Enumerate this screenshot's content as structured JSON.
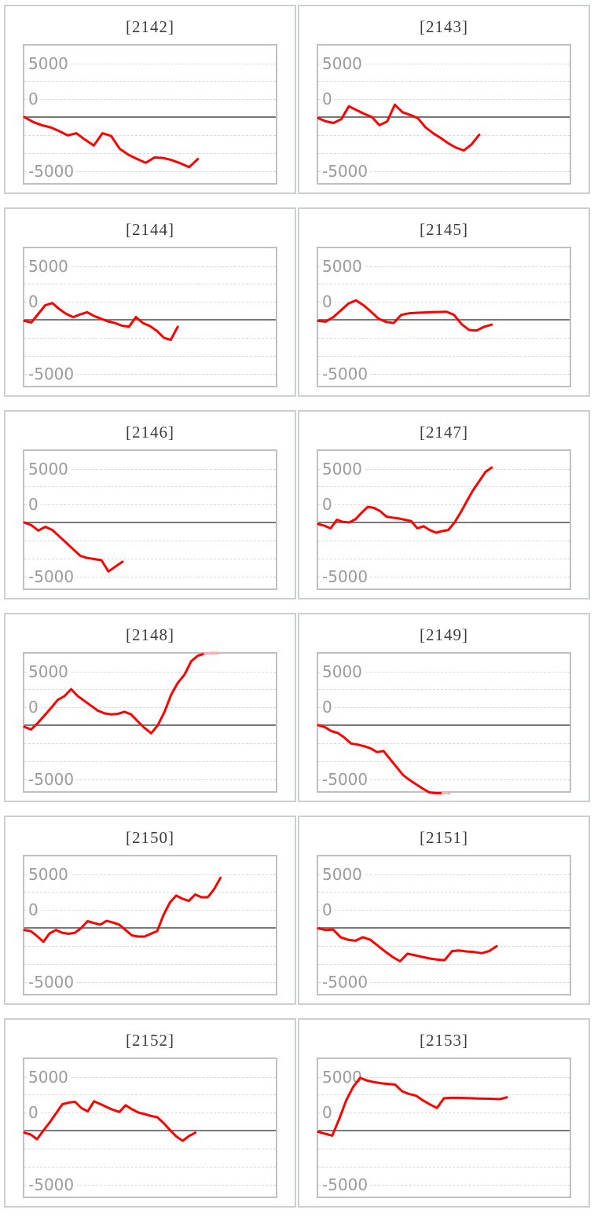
{
  "chart_config": {
    "ytick_labels": [
      "5000",
      "0",
      "-5000"
    ],
    "yticks": [
      5000,
      0,
      -5000
    ],
    "ylim": [
      -6131,
      6642
    ],
    "minor_grid_step": 1667,
    "grid": "dashed horizontal minor gridlines, solid zero axis",
    "legend": "none",
    "series_color": "#ff0000",
    "overflow_color": "#f2b6bc",
    "zero_line_color": "#787878",
    "grid_color": "#d9d9d9",
    "plot_border_color": "#c0c0c0",
    "panel_border_color": "#cdd0d2",
    "title_color": "#3d3d3d",
    "tick_label_color": "#9b9b9b"
  },
  "chart_data": [
    {
      "type": "line",
      "id": "2142",
      "title": "[2142]",
      "span": 0.69,
      "clip_from": null,
      "values": [
        0,
        -450,
        -750,
        -950,
        -1300,
        -1700,
        -1500,
        -2100,
        -2650,
        -1500,
        -1750,
        -2950,
        -3500,
        -3900,
        -4250,
        -3750,
        -3800,
        -4000,
        -4300,
        -4650,
        -3900
      ]
    },
    {
      "type": "line",
      "id": "2143",
      "title": "[2143]",
      "span": 0.64,
      "clip_from": null,
      "values": [
        -100,
        -400,
        -550,
        -200,
        1000,
        650,
        300,
        0,
        -750,
        -400,
        1150,
        450,
        200,
        -100,
        -950,
        -1500,
        -1950,
        -2450,
        -2850,
        -3100,
        -2550,
        -1650
      ]
    },
    {
      "type": "line",
      "id": "2144",
      "title": "[2144]",
      "span": 0.61,
      "clip_from": null,
      "values": [
        -100,
        -250,
        550,
        1350,
        1550,
        1000,
        550,
        250,
        500,
        700,
        350,
        100,
        -150,
        -300,
        -550,
        -650,
        250,
        -300,
        -580,
        -1030,
        -1670,
        -1870,
        -660
      ]
    },
    {
      "type": "line",
      "id": "2145",
      "title": "[2145]",
      "span": 0.69,
      "clip_from": null,
      "values": [
        -100,
        -175,
        250,
        870,
        1500,
        1800,
        1350,
        750,
        100,
        -200,
        -300,
        450,
        600,
        650,
        680,
        700,
        720,
        750,
        450,
        -400,
        -950,
        -1000,
        -650,
        -450
      ]
    },
    {
      "type": "line",
      "id": "2146",
      "title": "[2146]",
      "span": 0.39,
      "clip_from": null,
      "values": [
        0,
        -250,
        -750,
        -400,
        -700,
        -1300,
        -1900,
        -2500,
        -3100,
        -3300,
        -3400,
        -3500,
        -4550,
        -4100,
        -3650
      ]
    },
    {
      "type": "line",
      "id": "2147",
      "title": "[2147]",
      "span": 0.69,
      "clip_from": null,
      "values": [
        -150,
        -300,
        -550,
        250,
        50,
        0,
        300,
        900,
        1450,
        1350,
        1050,
        550,
        450,
        370,
        250,
        130,
        -550,
        -350,
        -700,
        -950,
        -800,
        -700,
        0,
        950,
        2000,
        3000,
        3850,
        4700,
        5100
      ]
    },
    {
      "type": "line",
      "id": "2148",
      "title": "[2148]",
      "span": 0.77,
      "clip_from": 27,
      "values": [
        -150,
        -400,
        200,
        900,
        1600,
        2350,
        2700,
        3350,
        2700,
        2250,
        1800,
        1350,
        1100,
        1000,
        1050,
        1250,
        1000,
        350,
        -250,
        -750,
        0,
        1250,
        2850,
        3950,
        4700,
        5950,
        6450,
        6650,
        6700,
        6700
      ]
    },
    {
      "type": "line",
      "id": "2149",
      "title": "[2149]",
      "span": 0.52,
      "clip_from": 19,
      "values": [
        0,
        -175,
        -550,
        -720,
        -1150,
        -1700,
        -1800,
        -1950,
        -2150,
        -2500,
        -2400,
        -3150,
        -3900,
        -4650,
        -5100,
        -5500,
        -5900,
        -6250,
        -6500,
        -6650,
        -6700
      ]
    },
    {
      "type": "line",
      "id": "2150",
      "title": "[2150]",
      "span": 0.78,
      "clip_from": null,
      "values": [
        -200,
        -300,
        -750,
        -1300,
        -500,
        -200,
        -450,
        -550,
        -450,
        0,
        620,
        450,
        300,
        650,
        500,
        300,
        -200,
        -700,
        -800,
        -800,
        -550,
        -300,
        1200,
        2350,
        3000,
        2700,
        2500,
        3100,
        2850,
        2850,
        3600,
        4650
      ]
    },
    {
      "type": "line",
      "id": "2151",
      "title": "[2151]",
      "span": 0.71,
      "clip_from": null,
      "values": [
        -50,
        -200,
        -150,
        -870,
        -1100,
        -1200,
        -870,
        -1100,
        -1650,
        -2200,
        -2700,
        -3100,
        -2400,
        -2550,
        -2700,
        -2850,
        -2950,
        -3000,
        -2150,
        -2100,
        -2200,
        -2250,
        -2350,
        -2150,
        -1700
      ]
    },
    {
      "type": "line",
      "id": "2152",
      "title": "[2152]",
      "span": 0.68,
      "clip_from": null,
      "values": [
        -200,
        -370,
        -800,
        0,
        750,
        1600,
        2450,
        2600,
        2670,
        2100,
        1780,
        2720,
        2470,
        2180,
        1930,
        1730,
        2350,
        1980,
        1680,
        1530,
        1360,
        1240,
        690,
        50,
        -550,
        -950,
        -500,
        -200
      ]
    },
    {
      "type": "line",
      "id": "2153",
      "title": "[2153]",
      "span": 0.75,
      "clip_from": null,
      "values": [
        -125,
        -300,
        -470,
        1070,
        2800,
        4050,
        4900,
        4650,
        4500,
        4400,
        4330,
        4280,
        3650,
        3400,
        3250,
        2800,
        2430,
        2100,
        3000,
        3040,
        3040,
        3020,
        3000,
        2980,
        2960,
        2950,
        2920,
        3090
      ]
    }
  ]
}
